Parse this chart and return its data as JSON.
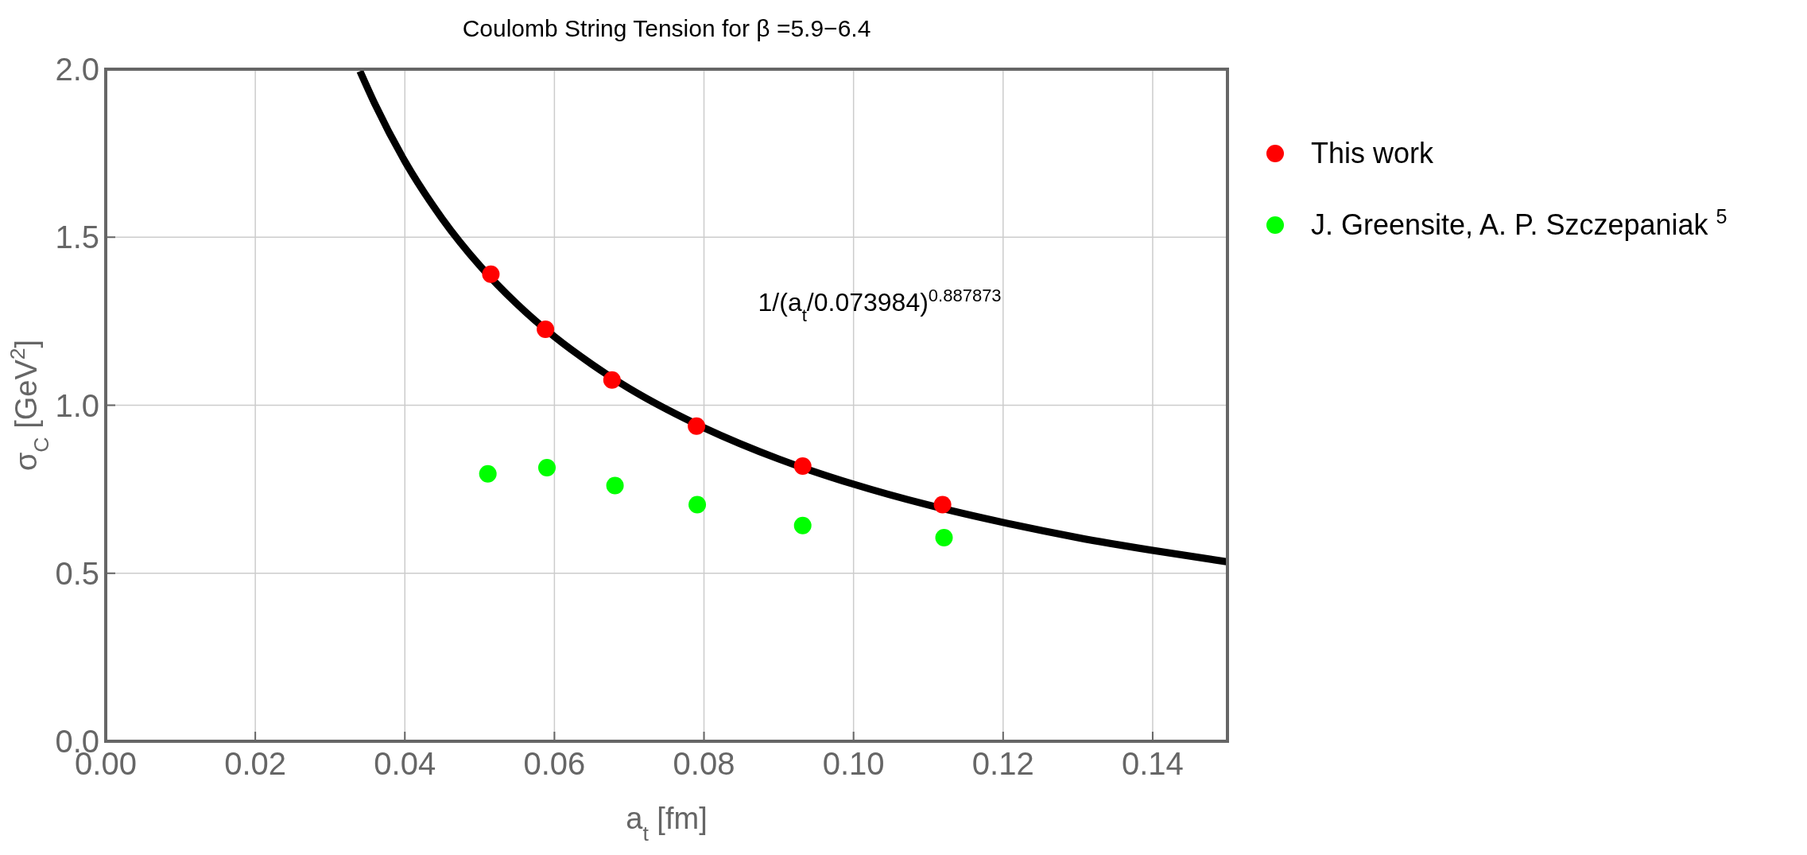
{
  "chart_data": {
    "type": "scatter",
    "title": "Coulomb String Tension for β =5.9−6.4",
    "xlabel": "a$_{t}$ [fm]",
    "ylabel": "σ$_{C}$ [GeV$^{2}$]",
    "xlim": [
      0,
      0.15
    ],
    "xticks": [
      {
        "value": 0,
        "label": "0.00"
      },
      {
        "value": 0.02,
        "label": "0.02"
      },
      {
        "value": 0.04,
        "label": "0.04"
      },
      {
        "value": 0.06,
        "label": "0.06"
      },
      {
        "value": 0.08,
        "label": "0.08"
      },
      {
        "value": 0.1,
        "label": "0.10"
      },
      {
        "value": 0.12,
        "label": "0.12"
      },
      {
        "value": 0.14,
        "label": "0.14"
      }
    ],
    "ylim": [
      0,
      2
    ],
    "yticks": [
      {
        "value": 0,
        "label": "0.0"
      },
      {
        "value": 0.5,
        "label": "0.5"
      },
      {
        "value": 1,
        "label": "1.0"
      },
      {
        "value": 1.5,
        "label": "1.5"
      },
      {
        "value": 2,
        "label": "2.0"
      }
    ],
    "grid": true,
    "legend": "right",
    "series": [
      {
        "type": "line",
        "color": "#000000",
        "marker": "none",
        "line_style": "solid",
        "x": [
          0.034,
          0.036,
          0.04,
          0.045,
          0.05,
          0.055,
          0.06,
          0.065,
          0.07,
          0.075,
          0.08,
          0.09,
          0.1,
          0.11,
          0.12,
          0.13,
          0.14,
          0.15
        ],
        "values": [
          1.994,
          1.896,
          1.726,
          1.555,
          1.416,
          1.301,
          1.204,
          1.122,
          1.05,
          0.988,
          0.933,
          0.84,
          0.765,
          0.703,
          0.651,
          0.606,
          0.568,
          0.534
        ]
      },
      {
        "name": "This work",
        "color": "#ff0000",
        "marker": "circle",
        "x": [
          0.0515,
          0.0588,
          0.0677,
          0.079,
          0.0932,
          0.1119
        ],
        "values": [
          1.39,
          1.226,
          1.075,
          0.938,
          0.819,
          0.704
        ]
      },
      {
        "name": "J. Greensite, A. P. Szczepaniak $^{5}$",
        "color": "#00ff00",
        "marker": "circle",
        "x": [
          0.0511,
          0.059,
          0.0681,
          0.0791,
          0.0932,
          0.1121
        ],
        "values": [
          0.796,
          0.814,
          0.761,
          0.704,
          0.642,
          0.606
        ]
      }
    ],
    "annotations": [
      "1/(a$_{t}$/0.073984)$^{0.887873}$"
    ]
  }
}
